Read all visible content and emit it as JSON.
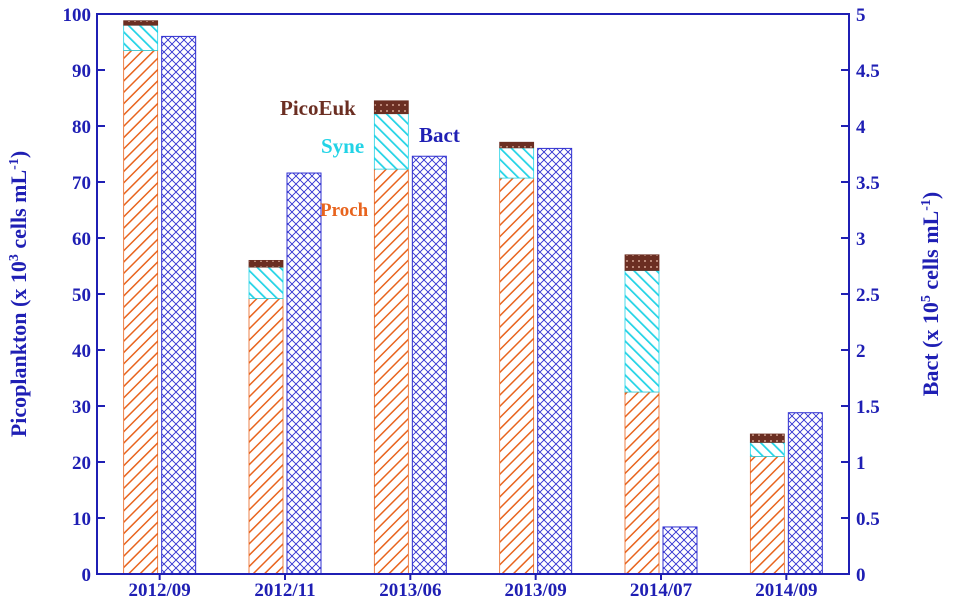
{
  "chart_data": {
    "type": "bar",
    "categories": [
      "2012/09",
      "2012/11",
      "2013/06",
      "2013/09",
      "2014/07",
      "2014/09"
    ],
    "stacked_series": [
      {
        "name": "Proch",
        "values": [
          93.5,
          49.2,
          72.3,
          70.7,
          32.5,
          21.0
        ],
        "color": "#e8641e"
      },
      {
        "name": "Syne",
        "values": [
          4.5,
          5.6,
          9.9,
          5.4,
          21.7,
          2.5
        ],
        "color": "#22d3e6"
      },
      {
        "name": "PicoEuk",
        "values": [
          0.8,
          1.2,
          2.3,
          1.0,
          2.8,
          1.5
        ],
        "color": "#6b2e22"
      }
    ],
    "secondary_series": {
      "name": "Bact",
      "values": [
        4.8,
        3.58,
        3.73,
        3.8,
        0.42,
        1.44
      ],
      "color": "#2f2fd0"
    },
    "ylabel_left": {
      "pre": "Picoplankton (x 10",
      "sup1": "3",
      "mid": " cells mL",
      "sup2": "-1",
      "post": ")"
    },
    "ylabel_right": {
      "pre": "Bact (x 10",
      "sup1": "5",
      "mid": " cells mL",
      "sup2": "-1",
      "post": ")"
    },
    "ylim_left": [
      0,
      100
    ],
    "ylim_right": [
      0,
      5
    ],
    "yticks_left": [
      "0",
      "10",
      "20",
      "30",
      "40",
      "50",
      "60",
      "70",
      "80",
      "90",
      "100"
    ],
    "yticks_right": [
      "0",
      "0.5",
      "1",
      "1.5",
      "2",
      "2.5",
      "3",
      "3.5",
      "4",
      "4.5",
      "5"
    ],
    "annotations": {
      "picoeuk": "PicoEuk",
      "syne": "Syne",
      "bact": "Bact",
      "proch": "Proch"
    },
    "grid": false,
    "legend": "inline annotations"
  }
}
